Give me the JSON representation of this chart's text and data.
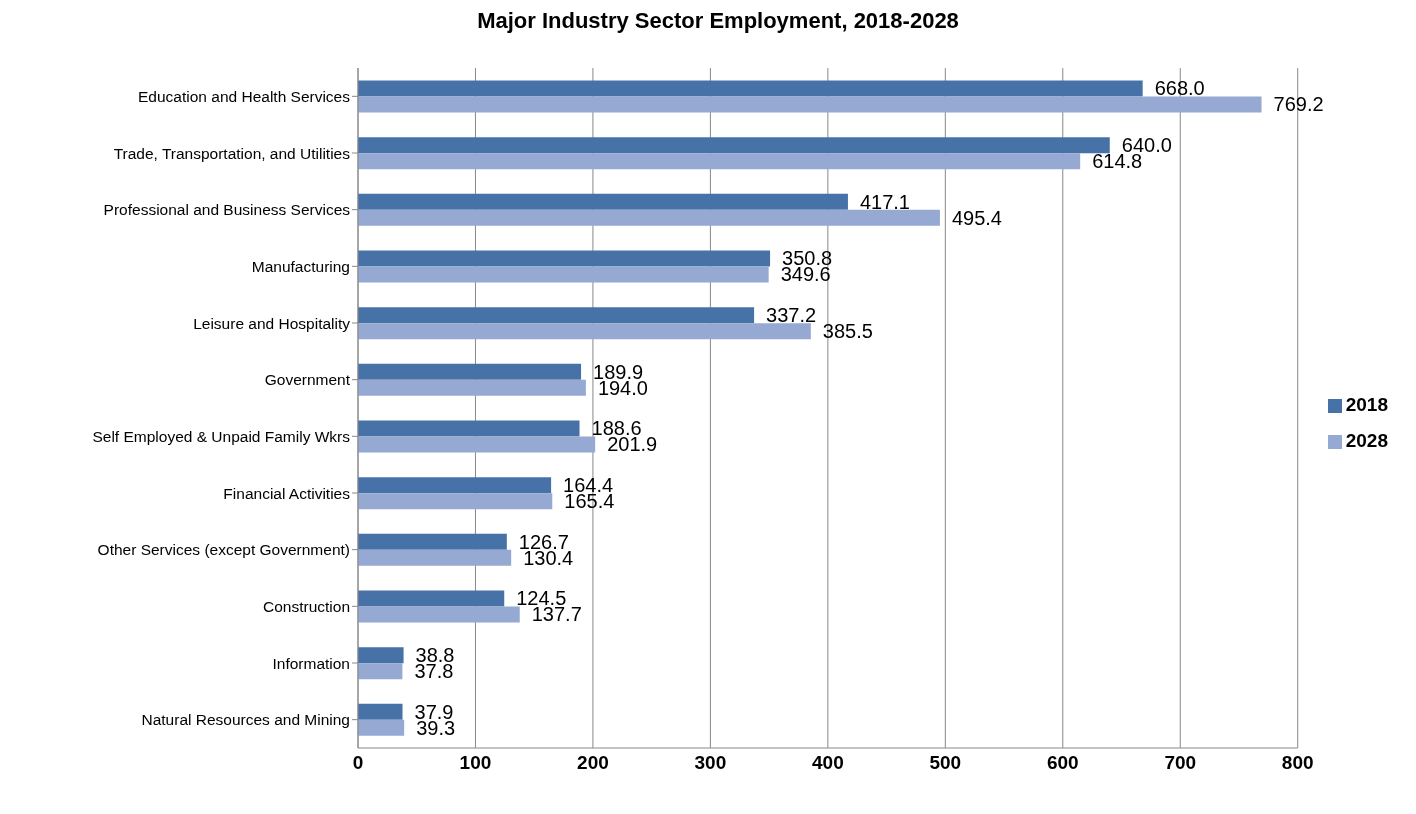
{
  "chart_data": {
    "type": "bar",
    "orientation": "horizontal",
    "title": "Major Industry Sector Employment, 2018-2028",
    "categories": [
      "Education and Health Services",
      "Trade, Transportation, and Utilities",
      "Professional and Business Services",
      "Manufacturing",
      "Leisure and Hospitality",
      "Government",
      "Self Employed & Unpaid Family Wkrs",
      "Financial Activities",
      "Other Services (except Government)",
      "Construction",
      "Information",
      "Natural Resources and Mining"
    ],
    "series": [
      {
        "name": "2018",
        "color": "#4672a8",
        "values": [
          668.0,
          640.0,
          417.1,
          350.8,
          337.2,
          189.9,
          188.6,
          164.4,
          126.7,
          124.5,
          38.8,
          37.9
        ],
        "value_labels": [
          "668.0",
          "640.0",
          "417.1",
          "350.8",
          "337.2",
          "189.9",
          "188.6",
          "164.4",
          "126.7",
          "124.5",
          "38.8",
          "37.9"
        ]
      },
      {
        "name": "2028",
        "color": "#95a9d3",
        "values": [
          769.2,
          614.8,
          495.4,
          349.6,
          385.5,
          194.0,
          201.9,
          165.4,
          130.4,
          137.7,
          37.8,
          39.3
        ],
        "value_labels": [
          "769.2",
          "614.8",
          "495.4",
          "349.6",
          "385.5",
          "194.0",
          "201.9",
          "165.4",
          "130.4",
          "137.7",
          "37.8",
          "39.3"
        ]
      }
    ],
    "xlim": [
      0,
      800
    ],
    "xticks": [
      0,
      100,
      200,
      300,
      400,
      500,
      600,
      700,
      800
    ],
    "grid": "x",
    "legend": "right"
  }
}
